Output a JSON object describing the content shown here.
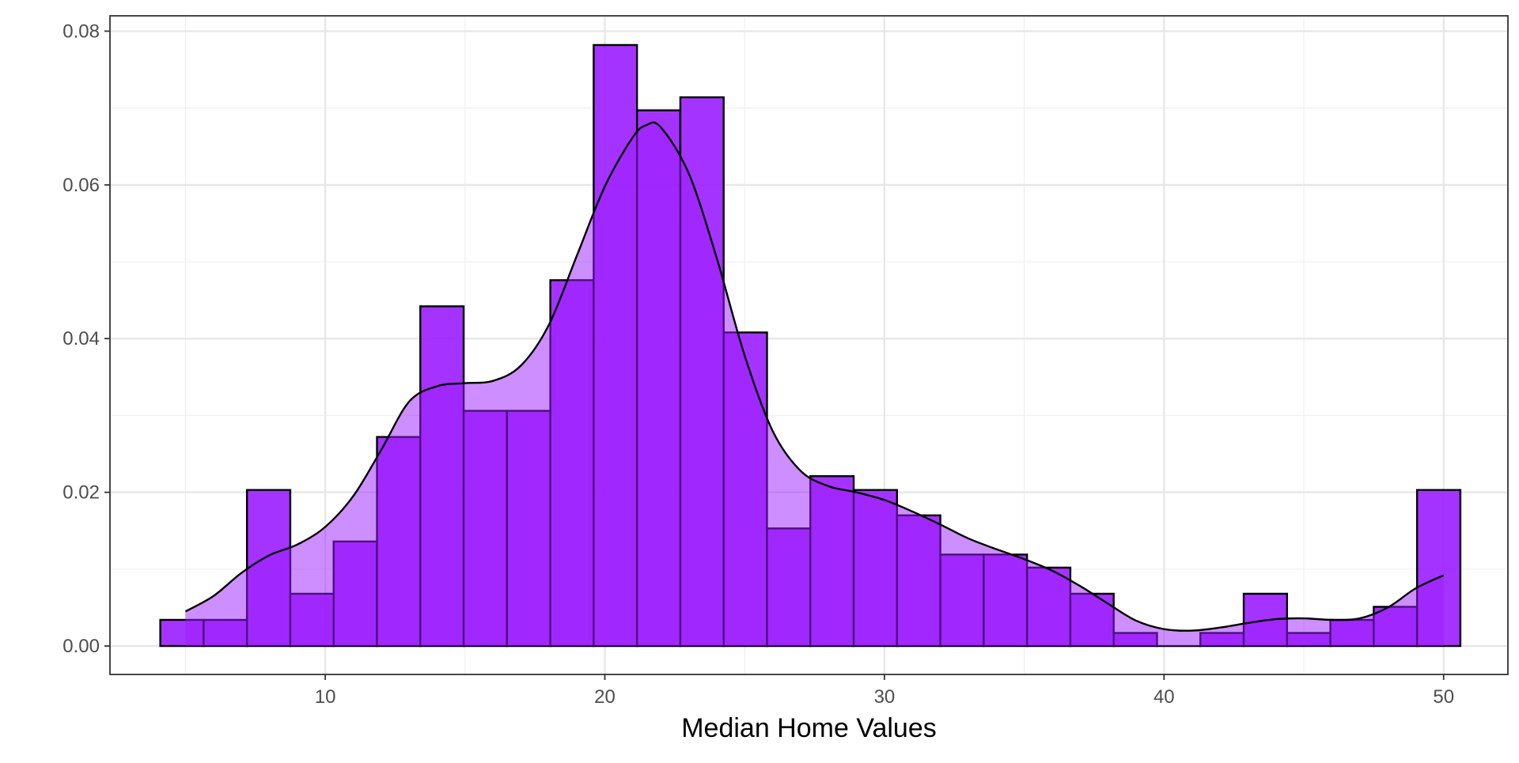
{
  "chart_data": {
    "type": "bar",
    "title": "",
    "xlabel": "Median Home Values",
    "ylabel": "",
    "xlim": [
      2.3,
      52.3
    ],
    "ylim": [
      -0.0037,
      0.082
    ],
    "x_ticks": [
      10,
      20,
      30,
      40,
      50
    ],
    "x_tick_labels": [
      "10",
      "20",
      "30",
      "40",
      "50"
    ],
    "y_ticks": [
      0.0,
      0.02,
      0.04,
      0.06,
      0.08
    ],
    "y_tick_labels": [
      "0.00",
      "0.02",
      "0.04",
      "0.06",
      "0.08"
    ],
    "grid": true,
    "legend": "none",
    "colors": {
      "bar_fill": "#9b1dff",
      "bar_fill_opacity": 0.9,
      "density_fill": "#9b1dff",
      "density_fill_opacity": 0.5,
      "outline": "#000000",
      "background": "#ffffff"
    },
    "histogram": {
      "bin_edges": [
        4.1,
        5.65,
        7.2,
        8.75,
        10.3,
        11.85,
        13.4,
        14.95,
        16.5,
        18.05,
        19.6,
        21.15,
        22.7,
        24.25,
        25.8,
        27.35,
        28.9,
        30.45,
        32.0,
        33.55,
        35.1,
        36.65,
        38.2,
        39.75,
        41.3,
        42.85,
        44.4,
        45.95,
        47.5,
        49.05,
        50.6
      ],
      "densities": [
        0.0034,
        0.0034,
        0.0203,
        0.0068,
        0.0136,
        0.0272,
        0.0442,
        0.0306,
        0.0306,
        0.0476,
        0.0782,
        0.0697,
        0.0714,
        0.0408,
        0.0153,
        0.0221,
        0.0203,
        0.017,
        0.0119,
        0.0119,
        0.0102,
        0.0068,
        0.0017,
        0.0,
        0.0017,
        0.0068,
        0.0017,
        0.0034,
        0.0051,
        0.0203
      ]
    },
    "density_curve": {
      "x": [
        5.0,
        6.0,
        7.0,
        8.0,
        9.0,
        10.0,
        11.0,
        12.0,
        13.0,
        14.0,
        15.0,
        16.0,
        17.0,
        18.0,
        19.0,
        20.0,
        21.0,
        21.5,
        22.0,
        23.0,
        24.0,
        25.0,
        26.0,
        27.0,
        28.0,
        29.0,
        30.0,
        31.0,
        32.0,
        33.0,
        34.0,
        35.0,
        36.0,
        37.0,
        38.0,
        39.0,
        40.0,
        41.0,
        42.0,
        43.0,
        44.0,
        45.0,
        46.0,
        47.0,
        48.0,
        49.0,
        50.0
      ],
      "y": [
        0.0045,
        0.0065,
        0.0095,
        0.0118,
        0.0132,
        0.0155,
        0.0195,
        0.0255,
        0.0318,
        0.0338,
        0.0342,
        0.0345,
        0.0365,
        0.0418,
        0.0508,
        0.0598,
        0.0662,
        0.0678,
        0.0675,
        0.0615,
        0.0505,
        0.0378,
        0.028,
        0.0228,
        0.0208,
        0.02,
        0.019,
        0.0175,
        0.0158,
        0.014,
        0.0126,
        0.0113,
        0.0098,
        0.0078,
        0.0055,
        0.0033,
        0.0022,
        0.002,
        0.0024,
        0.003,
        0.0035,
        0.0036,
        0.0034,
        0.0036,
        0.005,
        0.0075,
        0.0092
      ]
    }
  }
}
